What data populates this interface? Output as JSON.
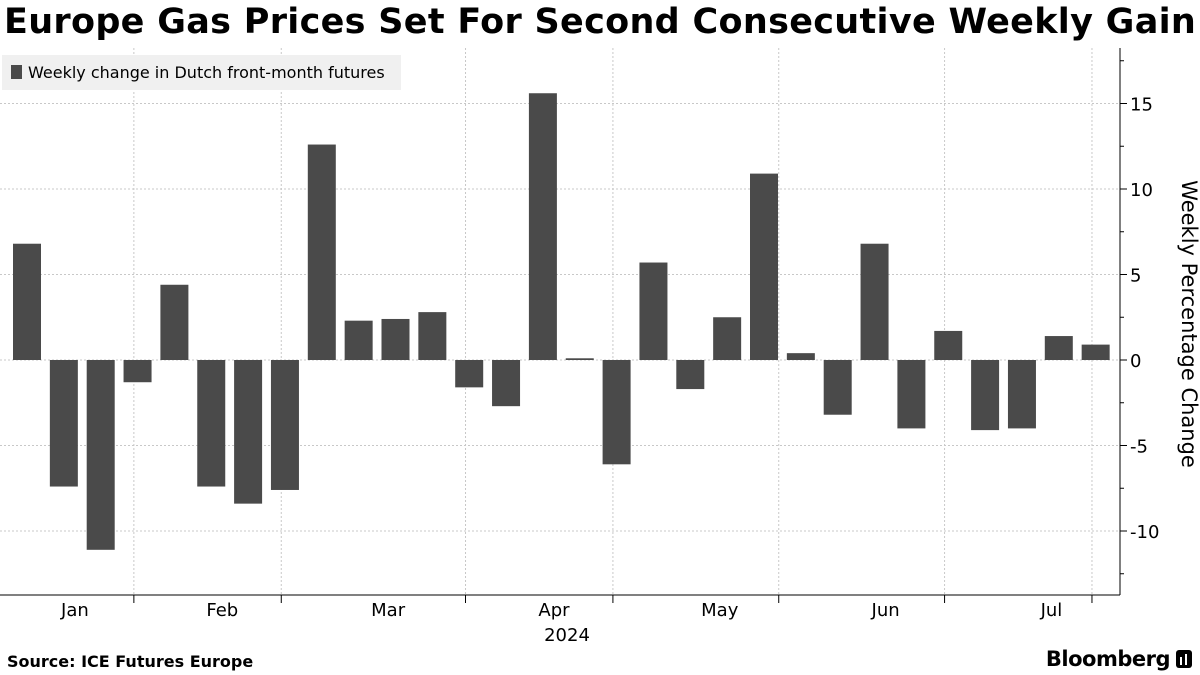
{
  "title": "Europe Gas Prices Set For Second Consecutive Weekly Gain",
  "source": "Source: ICE Futures Europe",
  "brand": "Bloomberg",
  "colors": {
    "bar": "#4a4a4a",
    "grid": "#c8c8c8",
    "legend_bg": "#f0f0f0"
  },
  "chart_data": {
    "type": "bar",
    "legend": "Weekly change in Dutch front-month futures",
    "ylabel": "Weekly Percentage Change",
    "xlabel": "2024",
    "ylim": [
      -14,
      18
    ],
    "yticks": [
      -10,
      -5,
      0,
      5,
      10,
      15
    ],
    "ytick_labels": [
      "-10",
      "-5",
      "0",
      "5",
      "10",
      "15"
    ],
    "month_labels": [
      "Jan",
      "Feb",
      "Mar",
      "Apr",
      "May",
      "Jun",
      "Jul"
    ],
    "month_label_weeks": [
      1.3,
      5.3,
      9.8,
      14.3,
      18.8,
      23.3,
      27.8
    ],
    "month_boundary_weeks": [
      2.9,
      6.9,
      11.9,
      15.9,
      20.4,
      24.9,
      28.9
    ],
    "week_index": [
      0,
      1,
      2,
      3,
      4,
      5,
      6,
      7,
      8,
      9,
      10,
      11,
      12,
      13,
      14,
      15,
      16,
      17,
      18,
      19,
      20,
      21,
      22,
      23,
      24,
      25,
      26,
      27,
      28,
      29
    ],
    "values": [
      6.8,
      -7.4,
      -11.1,
      -1.3,
      4.4,
      -7.4,
      -8.4,
      -7.6,
      12.6,
      2.3,
      2.4,
      2.8,
      -1.6,
      -2.7,
      15.6,
      0.1,
      -6.1,
      5.7,
      -1.7,
      2.5,
      10.9,
      0.4,
      -3.2,
      6.8,
      -4.0,
      1.7,
      -4.1,
      -4.0,
      1.4,
      0.9
    ]
  }
}
